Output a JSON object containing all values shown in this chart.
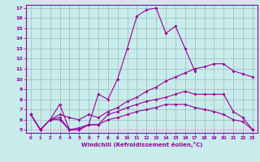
{
  "xlabel": "Windchill (Refroidissement éolien,°C)",
  "xlim": [
    -0.5,
    23.5
  ],
  "ylim": [
    4.7,
    17.3
  ],
  "yticks": [
    5,
    6,
    7,
    8,
    9,
    10,
    11,
    12,
    13,
    14,
    15,
    16,
    17
  ],
  "xticks": [
    0,
    1,
    2,
    3,
    4,
    5,
    6,
    7,
    8,
    9,
    10,
    11,
    12,
    13,
    14,
    15,
    16,
    17,
    18,
    19,
    20,
    21,
    22,
    23
  ],
  "bg_color": "#c8ecec",
  "line_color": "#990099",
  "grid_color": "#99bbbb",
  "line_width": 0.8,
  "marker": "D",
  "marker_size": 2.0,
  "lines": [
    {
      "x": [
        0,
        1,
        2,
        3,
        4,
        5,
        6,
        7,
        8,
        9,
        10,
        11,
        12,
        13,
        14,
        15,
        16,
        17
      ],
      "y": [
        6.5,
        5.0,
        6.0,
        7.5,
        5.0,
        5.0,
        5.5,
        8.5,
        8.0,
        10.0,
        13.0,
        16.2,
        16.8,
        17.0,
        14.5,
        15.2,
        13.0,
        10.8
      ]
    },
    {
      "x": [
        0,
        1,
        2,
        3,
        4,
        5,
        6,
        7,
        8,
        9,
        10,
        11,
        12,
        13,
        14,
        15,
        16,
        17,
        18,
        19,
        20,
        21,
        22,
        23
      ],
      "y": [
        6.5,
        5.0,
        6.0,
        6.5,
        6.2,
        6.0,
        6.5,
        6.2,
        6.8,
        7.2,
        7.8,
        8.2,
        8.8,
        9.2,
        9.8,
        10.2,
        10.6,
        11.0,
        11.2,
        11.5,
        11.5,
        10.8,
        10.5,
        10.2
      ]
    },
    {
      "x": [
        0,
        1,
        2,
        3,
        4,
        5,
        6,
        7,
        8,
        9,
        10,
        11,
        12,
        13,
        14,
        15,
        16,
        17,
        18,
        19,
        20,
        21,
        22,
        23
      ],
      "y": [
        6.5,
        5.0,
        6.0,
        6.2,
        5.0,
        5.2,
        5.5,
        5.5,
        6.5,
        6.8,
        7.2,
        7.5,
        7.8,
        8.0,
        8.2,
        8.5,
        8.8,
        8.5,
        8.5,
        8.5,
        8.5,
        6.8,
        6.2,
        5.0
      ]
    },
    {
      "x": [
        0,
        1,
        2,
        3,
        4,
        5,
        6,
        7,
        8,
        9,
        10,
        11,
        12,
        13,
        14,
        15,
        16,
        17,
        18,
        19,
        20,
        21,
        22,
        23
      ],
      "y": [
        6.5,
        5.0,
        6.0,
        6.0,
        5.0,
        5.0,
        5.5,
        5.5,
        6.0,
        6.2,
        6.5,
        6.8,
        7.0,
        7.2,
        7.5,
        7.5,
        7.5,
        7.2,
        7.0,
        6.8,
        6.5,
        6.0,
        5.8,
        5.0
      ]
    }
  ]
}
